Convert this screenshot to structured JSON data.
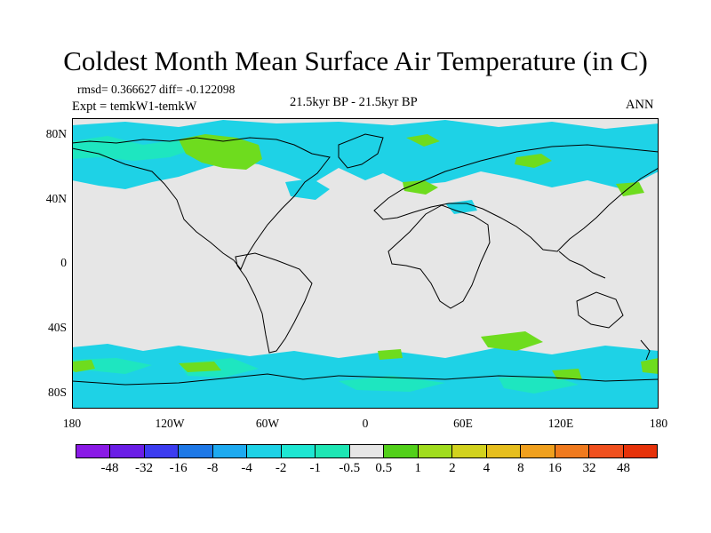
{
  "title": "Coldest Month Mean Surface Air Temperature (in C)",
  "stats": "rmsd= 0.366627 diff= -0.122098",
  "experiment": "Expt = temkW1-temkW",
  "period": "21.5kyr BP - 21.5kyr BP",
  "season": "ANN",
  "lat_labels": [
    "80N",
    "40N",
    "0",
    "40S",
    "80S"
  ],
  "lon_labels": [
    "180",
    "120W",
    "60W",
    "0",
    "60E",
    "120E",
    "180"
  ],
  "colorbar": {
    "colors": [
      "#8a1ae6",
      "#6a1ee6",
      "#3c3cf0",
      "#1e78e6",
      "#1eaaf0",
      "#1ed2e6",
      "#1ee6d2",
      "#1ee6b4",
      "#e6e6e6",
      "#52d01a",
      "#a0dc1e",
      "#d2d21e",
      "#e6be1e",
      "#f0a01e",
      "#f07a1e",
      "#f0501e",
      "#e6320a"
    ],
    "labels": [
      "-48",
      "-32",
      "-16",
      "-8",
      "-4",
      "-2",
      "-1",
      "-0.5",
      "0.5",
      "1",
      "2",
      "4",
      "8",
      "16",
      "32",
      "48"
    ]
  },
  "map_colors": {
    "background": "#e6e6e6",
    "cyan": "#1ed2e6",
    "teal": "#1ee6c0",
    "green": "#6edc1e",
    "orange": "#f0a01e",
    "coast": "#000000"
  }
}
